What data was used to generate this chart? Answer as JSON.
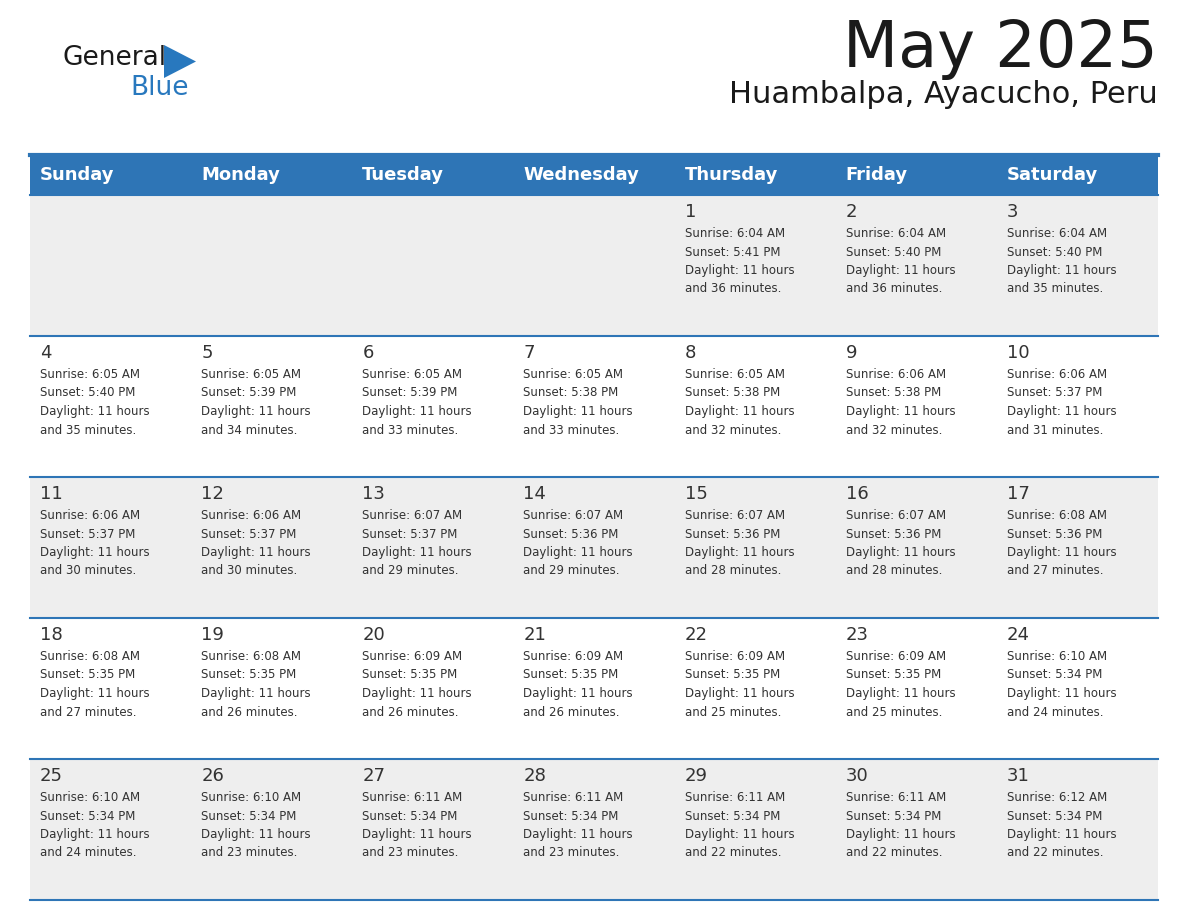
{
  "title": "May 2025",
  "subtitle": "Huambalpa, Ayacucho, Peru",
  "days_of_week": [
    "Sunday",
    "Monday",
    "Tuesday",
    "Wednesday",
    "Thursday",
    "Friday",
    "Saturday"
  ],
  "header_bg": "#2E75B6",
  "header_text_color": "#FFFFFF",
  "cell_bg_odd": "#EEEEEE",
  "cell_bg_even": "#FFFFFF",
  "separator_color": "#2E75B6",
  "day_number_color": "#333333",
  "cell_text_color": "#333333",
  "title_color": "#1a1a1a",
  "subtitle_color": "#1a1a1a",
  "logo_general_color": "#1a1a1a",
  "logo_blue_color": "#2878BE",
  "calendar_data": [
    [
      null,
      null,
      null,
      null,
      {
        "day": 1,
        "sunrise": "6:04 AM",
        "sunset": "5:41 PM",
        "daylight_line1": "Daylight: 11 hours",
        "daylight_line2": "and 36 minutes."
      },
      {
        "day": 2,
        "sunrise": "6:04 AM",
        "sunset": "5:40 PM",
        "daylight_line1": "Daylight: 11 hours",
        "daylight_line2": "and 36 minutes."
      },
      {
        "day": 3,
        "sunrise": "6:04 AM",
        "sunset": "5:40 PM",
        "daylight_line1": "Daylight: 11 hours",
        "daylight_line2": "and 35 minutes."
      }
    ],
    [
      {
        "day": 4,
        "sunrise": "6:05 AM",
        "sunset": "5:40 PM",
        "daylight_line1": "Daylight: 11 hours",
        "daylight_line2": "and 35 minutes."
      },
      {
        "day": 5,
        "sunrise": "6:05 AM",
        "sunset": "5:39 PM",
        "daylight_line1": "Daylight: 11 hours",
        "daylight_line2": "and 34 minutes."
      },
      {
        "day": 6,
        "sunrise": "6:05 AM",
        "sunset": "5:39 PM",
        "daylight_line1": "Daylight: 11 hours",
        "daylight_line2": "and 33 minutes."
      },
      {
        "day": 7,
        "sunrise": "6:05 AM",
        "sunset": "5:38 PM",
        "daylight_line1": "Daylight: 11 hours",
        "daylight_line2": "and 33 minutes."
      },
      {
        "day": 8,
        "sunrise": "6:05 AM",
        "sunset": "5:38 PM",
        "daylight_line1": "Daylight: 11 hours",
        "daylight_line2": "and 32 minutes."
      },
      {
        "day": 9,
        "sunrise": "6:06 AM",
        "sunset": "5:38 PM",
        "daylight_line1": "Daylight: 11 hours",
        "daylight_line2": "and 32 minutes."
      },
      {
        "day": 10,
        "sunrise": "6:06 AM",
        "sunset": "5:37 PM",
        "daylight_line1": "Daylight: 11 hours",
        "daylight_line2": "and 31 minutes."
      }
    ],
    [
      {
        "day": 11,
        "sunrise": "6:06 AM",
        "sunset": "5:37 PM",
        "daylight_line1": "Daylight: 11 hours",
        "daylight_line2": "and 30 minutes."
      },
      {
        "day": 12,
        "sunrise": "6:06 AM",
        "sunset": "5:37 PM",
        "daylight_line1": "Daylight: 11 hours",
        "daylight_line2": "and 30 minutes."
      },
      {
        "day": 13,
        "sunrise": "6:07 AM",
        "sunset": "5:37 PM",
        "daylight_line1": "Daylight: 11 hours",
        "daylight_line2": "and 29 minutes."
      },
      {
        "day": 14,
        "sunrise": "6:07 AM",
        "sunset": "5:36 PM",
        "daylight_line1": "Daylight: 11 hours",
        "daylight_line2": "and 29 minutes."
      },
      {
        "day": 15,
        "sunrise": "6:07 AM",
        "sunset": "5:36 PM",
        "daylight_line1": "Daylight: 11 hours",
        "daylight_line2": "and 28 minutes."
      },
      {
        "day": 16,
        "sunrise": "6:07 AM",
        "sunset": "5:36 PM",
        "daylight_line1": "Daylight: 11 hours",
        "daylight_line2": "and 28 minutes."
      },
      {
        "day": 17,
        "sunrise": "6:08 AM",
        "sunset": "5:36 PM",
        "daylight_line1": "Daylight: 11 hours",
        "daylight_line2": "and 27 minutes."
      }
    ],
    [
      {
        "day": 18,
        "sunrise": "6:08 AM",
        "sunset": "5:35 PM",
        "daylight_line1": "Daylight: 11 hours",
        "daylight_line2": "and 27 minutes."
      },
      {
        "day": 19,
        "sunrise": "6:08 AM",
        "sunset": "5:35 PM",
        "daylight_line1": "Daylight: 11 hours",
        "daylight_line2": "and 26 minutes."
      },
      {
        "day": 20,
        "sunrise": "6:09 AM",
        "sunset": "5:35 PM",
        "daylight_line1": "Daylight: 11 hours",
        "daylight_line2": "and 26 minutes."
      },
      {
        "day": 21,
        "sunrise": "6:09 AM",
        "sunset": "5:35 PM",
        "daylight_line1": "Daylight: 11 hours",
        "daylight_line2": "and 26 minutes."
      },
      {
        "day": 22,
        "sunrise": "6:09 AM",
        "sunset": "5:35 PM",
        "daylight_line1": "Daylight: 11 hours",
        "daylight_line2": "and 25 minutes."
      },
      {
        "day": 23,
        "sunrise": "6:09 AM",
        "sunset": "5:35 PM",
        "daylight_line1": "Daylight: 11 hours",
        "daylight_line2": "and 25 minutes."
      },
      {
        "day": 24,
        "sunrise": "6:10 AM",
        "sunset": "5:34 PM",
        "daylight_line1": "Daylight: 11 hours",
        "daylight_line2": "and 24 minutes."
      }
    ],
    [
      {
        "day": 25,
        "sunrise": "6:10 AM",
        "sunset": "5:34 PM",
        "daylight_line1": "Daylight: 11 hours",
        "daylight_line2": "and 24 minutes."
      },
      {
        "day": 26,
        "sunrise": "6:10 AM",
        "sunset": "5:34 PM",
        "daylight_line1": "Daylight: 11 hours",
        "daylight_line2": "and 23 minutes."
      },
      {
        "day": 27,
        "sunrise": "6:11 AM",
        "sunset": "5:34 PM",
        "daylight_line1": "Daylight: 11 hours",
        "daylight_line2": "and 23 minutes."
      },
      {
        "day": 28,
        "sunrise": "6:11 AM",
        "sunset": "5:34 PM",
        "daylight_line1": "Daylight: 11 hours",
        "daylight_line2": "and 23 minutes."
      },
      {
        "day": 29,
        "sunrise": "6:11 AM",
        "sunset": "5:34 PM",
        "daylight_line1": "Daylight: 11 hours",
        "daylight_line2": "and 22 minutes."
      },
      {
        "day": 30,
        "sunrise": "6:11 AM",
        "sunset": "5:34 PM",
        "daylight_line1": "Daylight: 11 hours",
        "daylight_line2": "and 22 minutes."
      },
      {
        "day": 31,
        "sunrise": "6:12 AM",
        "sunset": "5:34 PM",
        "daylight_line1": "Daylight: 11 hours",
        "daylight_line2": "and 22 minutes."
      }
    ]
  ]
}
